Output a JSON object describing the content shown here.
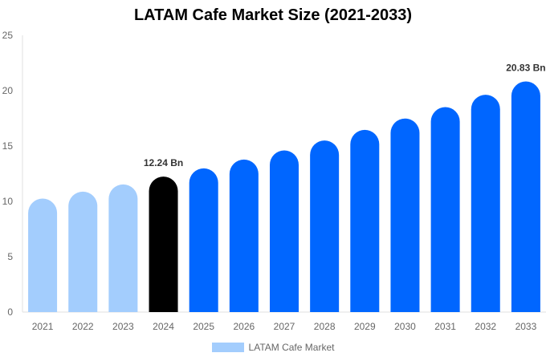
{
  "chart_data": {
    "type": "bar",
    "title": "LATAM Cafe Market Size (2021-2033)",
    "categories": [
      "2021",
      "2022",
      "2023",
      "2024",
      "2025",
      "2026",
      "2027",
      "2028",
      "2029",
      "2030",
      "2031",
      "2032",
      "2033"
    ],
    "series": [
      {
        "name": "LATAM Cafe Market",
        "values": [
          10.25,
          10.88,
          11.53,
          12.24,
          12.98,
          13.78,
          14.6,
          15.5,
          16.46,
          17.48,
          18.51,
          19.63,
          20.83
        ]
      }
    ],
    "data_labels": {
      "3": "12.24 Bn",
      "12": "20.83 Bn"
    },
    "ylim": [
      0,
      25
    ],
    "yticks": [
      0,
      5,
      10,
      15,
      20,
      25
    ],
    "grid": false,
    "legend": "bottom",
    "colors": {
      "historical": "#a3cdfd",
      "base_year": "#000000",
      "forecast": "#0066ff"
    }
  }
}
